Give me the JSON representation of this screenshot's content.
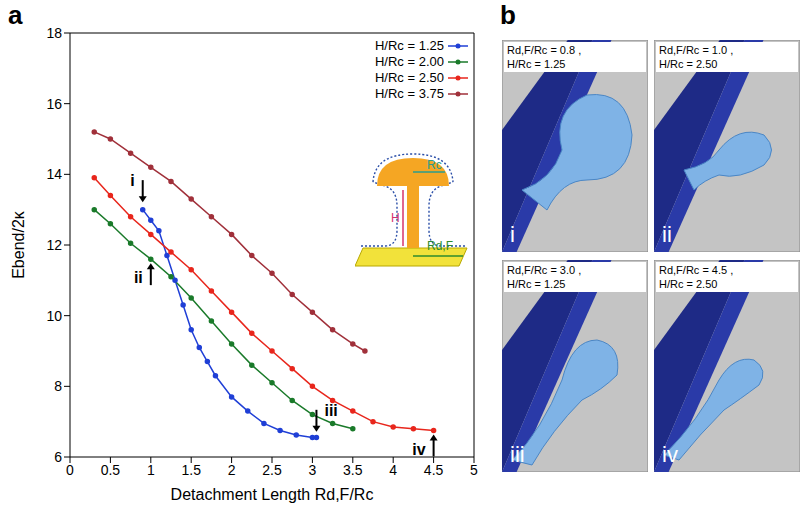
{
  "panel_labels": [
    "a",
    "b"
  ],
  "chart_data": {
    "type": "line",
    "x_label": "Detachment Length Rd,F/Rc",
    "y_label": "Ebend/2κ",
    "xlim": [
      0,
      5
    ],
    "xticks": [
      0,
      0.5,
      1,
      1.5,
      2,
      2.5,
      3,
      3.5,
      4,
      4.5,
      5
    ],
    "ylim": [
      6,
      18
    ],
    "yticks": [
      6,
      8,
      10,
      12,
      14,
      16,
      18
    ],
    "legend": "upper right",
    "marker": "circle",
    "series": [
      {
        "name": "H/Rc = 1.25",
        "color": "#1f3fd6",
        "x": [
          0.9,
          1.0,
          1.1,
          1.2,
          1.3,
          1.4,
          1.5,
          1.6,
          1.7,
          1.8,
          2.0,
          2.2,
          2.4,
          2.6,
          2.8,
          3.0,
          3.05
        ],
        "values": [
          13.0,
          12.7,
          12.4,
          11.7,
          11.0,
          10.3,
          9.6,
          9.1,
          8.7,
          8.3,
          7.7,
          7.3,
          6.95,
          6.75,
          6.62,
          6.55,
          6.55
        ]
      },
      {
        "name": "H/Rc = 2.00",
        "color": "#1a7a2a",
        "x": [
          0.3,
          0.5,
          0.75,
          1.0,
          1.25,
          1.5,
          1.75,
          2.0,
          2.25,
          2.5,
          2.75,
          3.0,
          3.25,
          3.5
        ],
        "values": [
          13.0,
          12.6,
          12.05,
          11.6,
          11.1,
          10.5,
          9.85,
          9.2,
          8.6,
          8.1,
          7.6,
          7.2,
          6.95,
          6.8
        ]
      },
      {
        "name": "H/Rc = 2.50",
        "color": "#e8261c",
        "x": [
          0.3,
          0.5,
          0.75,
          1.0,
          1.25,
          1.5,
          1.75,
          2.0,
          2.25,
          2.5,
          2.75,
          3.0,
          3.25,
          3.5,
          3.75,
          4.0,
          4.25,
          4.5
        ],
        "values": [
          13.9,
          13.4,
          12.8,
          12.3,
          11.8,
          11.3,
          10.7,
          10.1,
          9.5,
          9.0,
          8.5,
          8.0,
          7.6,
          7.3,
          7.0,
          6.85,
          6.8,
          6.75
        ]
      },
      {
        "name": "H/Rc = 3.75",
        "color": "#a0303a",
        "x": [
          0.3,
          0.5,
          0.75,
          1.0,
          1.25,
          1.5,
          1.75,
          2.0,
          2.25,
          2.5,
          2.75,
          3.0,
          3.25,
          3.5,
          3.65
        ],
        "values": [
          15.2,
          15.0,
          14.6,
          14.2,
          13.8,
          13.3,
          12.8,
          12.3,
          11.7,
          11.2,
          10.6,
          10.1,
          9.6,
          9.2,
          9.0
        ]
      }
    ],
    "annotations": [
      {
        "label": "i",
        "x": 0.9,
        "y": 13.1
      },
      {
        "label": "ii",
        "x": 1.0,
        "y": 11.6
      },
      {
        "label": "iii",
        "x": 3.05,
        "y": 6.6
      },
      {
        "label": "iv",
        "x": 4.5,
        "y": 6.75
      }
    ],
    "inset": {
      "labels": [
        "Rc",
        "H",
        "Rd,F"
      ]
    }
  },
  "snapshots": [
    {
      "title": "Rd,F/Rc = 0.8 , H/Rc = 1.25",
      "label": "i"
    },
    {
      "title": "Rd,F/Rc = 1.0 , H/Rc = 2.50",
      "label": "ii"
    },
    {
      "title": "Rd,F/Rc = 3.0 , H/Rc = 1.25",
      "label": "iii"
    },
    {
      "title": "Rd,F/Rc = 4.5 , H/Rc = 2.50",
      "label": "iv"
    }
  ]
}
